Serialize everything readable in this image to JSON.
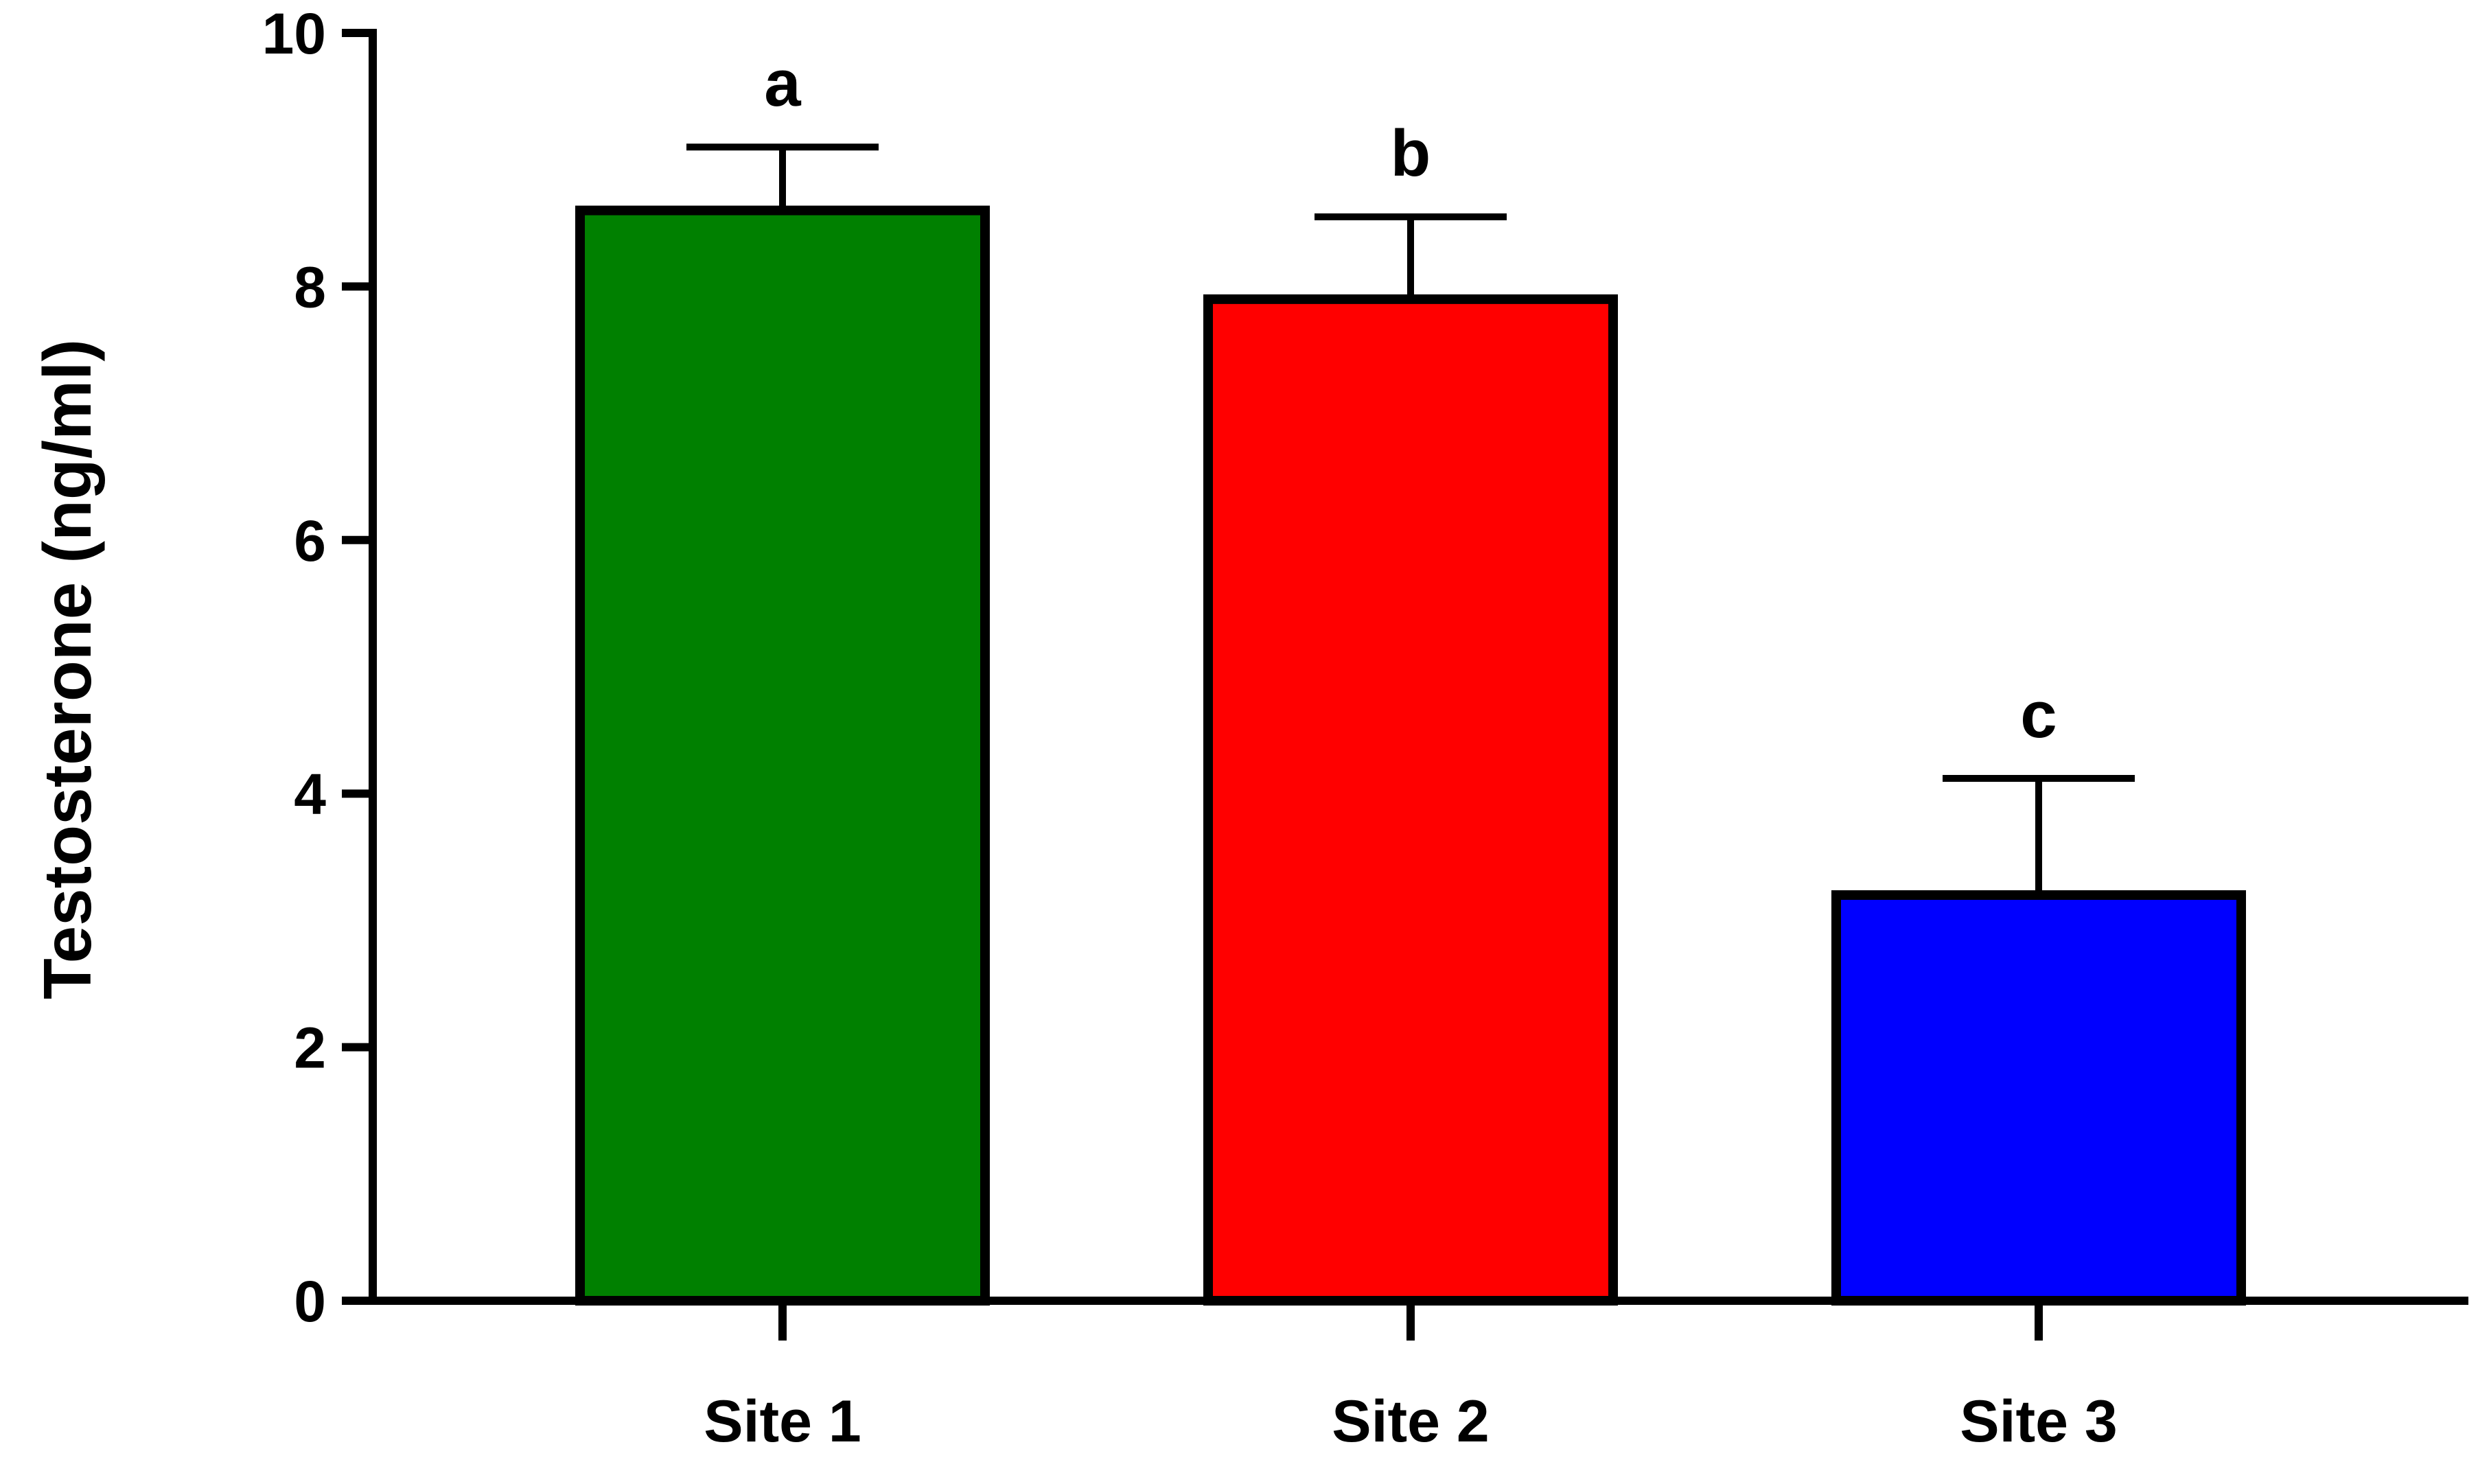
{
  "chart_data": {
    "type": "bar",
    "title": "",
    "xlabel": "",
    "ylabel": "Testosterone (ng/ml)",
    "ylim": [
      0,
      10
    ],
    "yticks": [
      0,
      2,
      4,
      6,
      8,
      10
    ],
    "grid": false,
    "categories": [
      "Site 1",
      "Site 2",
      "Site 3"
    ],
    "values": [
      8.6,
      7.9,
      3.2
    ],
    "error_upper": [
      9.1,
      8.55,
      4.12
    ],
    "significance_letters": [
      "a",
      "b",
      "c"
    ],
    "colors": [
      "#008000",
      "#ff0000",
      "#0000ff"
    ],
    "bar_edge_color": "#000000"
  }
}
